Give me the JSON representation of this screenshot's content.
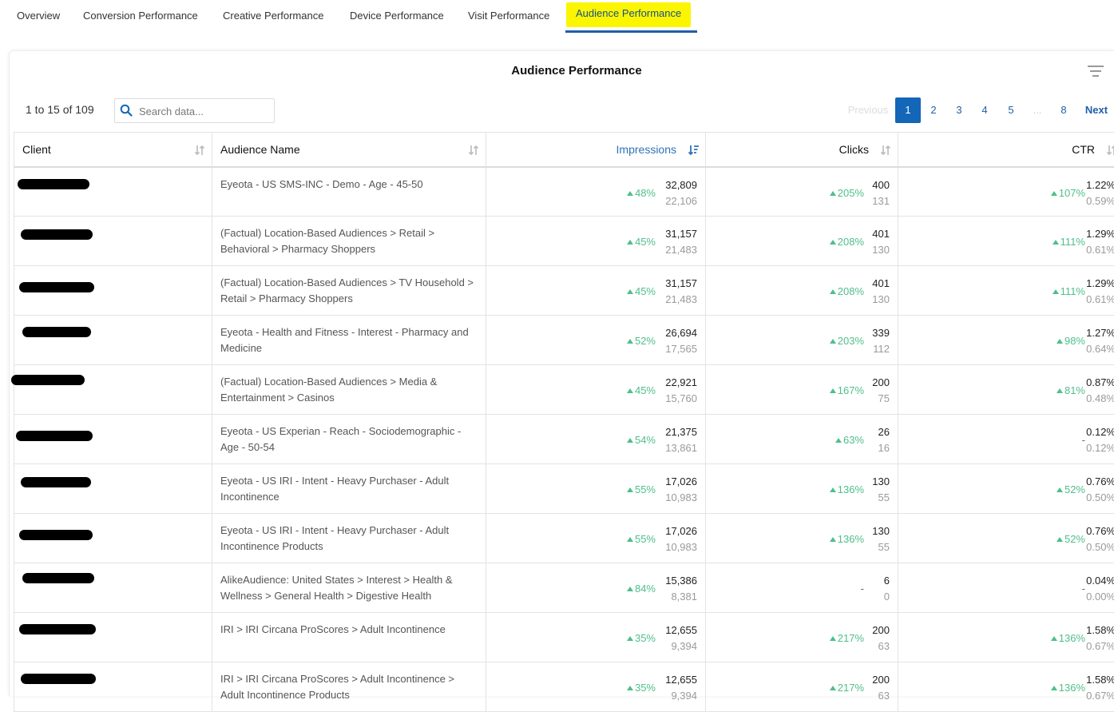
{
  "tabs": [
    {
      "label": "Overview",
      "active": false
    },
    {
      "label": "Conversion Performance",
      "active": false
    },
    {
      "label": "Creative Performance",
      "active": false
    },
    {
      "label": "Device Performance",
      "active": false
    },
    {
      "label": "Visit Performance",
      "active": false
    },
    {
      "label": "Audience Performance",
      "active": true
    }
  ],
  "card": {
    "title": "Audience Performance"
  },
  "toolbar": {
    "record_count": "1 to 15 of 109",
    "search_placeholder": "Search data..."
  },
  "pagination": {
    "previous": "Previous",
    "pages": [
      "1",
      "2",
      "3",
      "4",
      "5"
    ],
    "ellipsis": "...",
    "last": "8",
    "next": "Next",
    "current": "1"
  },
  "table": {
    "headers": {
      "client": "Client",
      "audience": "Audience Name",
      "impressions": "Impressions",
      "clicks": "Clicks",
      "ctr": "CTR"
    },
    "rows": [
      {
        "audience": "Eyeota - US SMS-INC - Demo - Age - 45-50",
        "imp": "32,809",
        "imp_prev": "22,106",
        "imp_delta": "48%",
        "clk": "400",
        "clk_prev": "131",
        "clk_delta": "205%",
        "ctr": "1.22%",
        "ctr_prev": "0.59%",
        "ctr_delta": "107%"
      },
      {
        "audience": "(Factual) Location-Based Audiences > Retail > Behavioral > Pharmacy Shoppers",
        "imp": "31,157",
        "imp_prev": "21,483",
        "imp_delta": "45%",
        "clk": "401",
        "clk_prev": "130",
        "clk_delta": "208%",
        "ctr": "1.29%",
        "ctr_prev": "0.61%",
        "ctr_delta": "111%"
      },
      {
        "audience": "(Factual) Location-Based Audiences > TV Household > Retail > Pharmacy Shoppers",
        "imp": "31,157",
        "imp_prev": "21,483",
        "imp_delta": "45%",
        "clk": "401",
        "clk_prev": "130",
        "clk_delta": "208%",
        "ctr": "1.29%",
        "ctr_prev": "0.61%",
        "ctr_delta": "111%"
      },
      {
        "audience": "Eyeota - Health and Fitness - Interest - Pharmacy and Medicine",
        "imp": "26,694",
        "imp_prev": "17,565",
        "imp_delta": "52%",
        "clk": "339",
        "clk_prev": "112",
        "clk_delta": "203%",
        "ctr": "1.27%",
        "ctr_prev": "0.64%",
        "ctr_delta": "98%"
      },
      {
        "audience": "(Factual) Location-Based Audiences > Media & Entertainment > Casinos",
        "imp": "22,921",
        "imp_prev": "15,760",
        "imp_delta": "45%",
        "clk": "200",
        "clk_prev": "75",
        "clk_delta": "167%",
        "ctr": "0.87%",
        "ctr_prev": "0.48%",
        "ctr_delta": "81%"
      },
      {
        "audience": "Eyeota - US Experian - Reach - Sociodemographic - Age - 50-54",
        "imp": "21,375",
        "imp_prev": "13,861",
        "imp_delta": "54%",
        "clk": "26",
        "clk_prev": "16",
        "clk_delta": "63%",
        "ctr": "0.12%",
        "ctr_prev": "0.12%",
        "ctr_delta": "-"
      },
      {
        "audience": "Eyeota - US IRI - Intent - Heavy Purchaser - Adult Incontinence",
        "imp": "17,026",
        "imp_prev": "10,983",
        "imp_delta": "55%",
        "clk": "130",
        "clk_prev": "55",
        "clk_delta": "136%",
        "ctr": "0.76%",
        "ctr_prev": "0.50%",
        "ctr_delta": "52%"
      },
      {
        "audience": "Eyeota - US IRI - Intent - Heavy Purchaser - Adult Incontinence Products",
        "imp": "17,026",
        "imp_prev": "10,983",
        "imp_delta": "55%",
        "clk": "130",
        "clk_prev": "55",
        "clk_delta": "136%",
        "ctr": "0.76%",
        "ctr_prev": "0.50%",
        "ctr_delta": "52%"
      },
      {
        "audience": "AlikeAudience: United States > Interest > Health & Wellness > General Health > Digestive Health",
        "imp": "15,386",
        "imp_prev": "8,381",
        "imp_delta": "84%",
        "clk": "6",
        "clk_prev": "0",
        "clk_delta": "-",
        "ctr": "0.04%",
        "ctr_prev": "0.00%",
        "ctr_delta": "-"
      },
      {
        "audience": "IRI > IRI Circana ProScores > Adult Incontinence",
        "imp": "12,655",
        "imp_prev": "9,394",
        "imp_delta": "35%",
        "clk": "200",
        "clk_prev": "63",
        "clk_delta": "217%",
        "ctr": "1.58%",
        "ctr_prev": "0.67%",
        "ctr_delta": "136%"
      },
      {
        "audience": "IRI > IRI Circana ProScores > Adult Incontinence > Adult Incontinence Products",
        "imp": "12,655",
        "imp_prev": "9,394",
        "imp_delta": "35%",
        "clk": "200",
        "clk_prev": "63",
        "clk_delta": "217%",
        "ctr": "1.58%",
        "ctr_prev": "0.67%",
        "ctr_delta": "136%"
      }
    ]
  },
  "colors": {
    "accent": "#1466b8",
    "positive": "#4fbf8a",
    "highlight": "#fbf600"
  },
  "icons": {
    "search": "search-icon",
    "filter": "filter-icon",
    "sort": "sort-icon"
  }
}
